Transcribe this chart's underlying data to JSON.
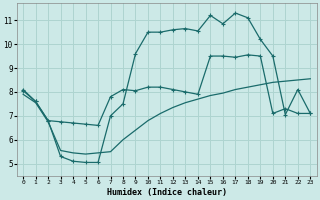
{
  "xlabel": "Humidex (Indice chaleur)",
  "background_color": "#cce9e7",
  "grid_color": "#aed4d0",
  "line_color": "#1a6b6b",
  "xlim": [
    -0.5,
    23.5
  ],
  "ylim": [
    4.5,
    11.7
  ],
  "xticks": [
    0,
    1,
    2,
    3,
    4,
    5,
    6,
    7,
    8,
    9,
    10,
    11,
    12,
    13,
    14,
    15,
    16,
    17,
    18,
    19,
    20,
    21,
    22,
    23
  ],
  "yticks": [
    5,
    6,
    7,
    8,
    9,
    10,
    11
  ],
  "line1_x": [
    0,
    1,
    2,
    3,
    4,
    5,
    6,
    7,
    8,
    9,
    10,
    11,
    12,
    13,
    14,
    15,
    16,
    17,
    18,
    19,
    20,
    21,
    22,
    23
  ],
  "line1_y": [
    8.1,
    7.6,
    6.8,
    5.3,
    5.1,
    5.05,
    5.05,
    7.0,
    7.5,
    9.6,
    10.5,
    10.5,
    10.6,
    10.65,
    10.55,
    11.2,
    10.85,
    11.3,
    11.1,
    10.2,
    9.5,
    7.05,
    8.1,
    7.1
  ],
  "line2_x": [
    0,
    1,
    2,
    3,
    4,
    5,
    6,
    7,
    8,
    9,
    10,
    11,
    12,
    13,
    14,
    15,
    16,
    17,
    18,
    19,
    20,
    21,
    22,
    23
  ],
  "line2_y": [
    7.9,
    7.55,
    6.75,
    5.55,
    5.45,
    5.4,
    5.45,
    5.5,
    6.0,
    6.4,
    6.8,
    7.1,
    7.35,
    7.55,
    7.7,
    7.85,
    7.95,
    8.1,
    8.2,
    8.3,
    8.4,
    8.45,
    8.5,
    8.55
  ],
  "line3_x": [
    0,
    1,
    2,
    3,
    4,
    5,
    6,
    7,
    8,
    9,
    10,
    11,
    12,
    13,
    14,
    15,
    16,
    17,
    18,
    19,
    20,
    21,
    22,
    23
  ],
  "line3_y": [
    8.05,
    7.6,
    6.8,
    6.75,
    6.7,
    6.65,
    6.6,
    7.8,
    8.1,
    8.05,
    8.2,
    8.2,
    8.1,
    8.0,
    7.9,
    9.5,
    9.5,
    9.45,
    9.55,
    9.5,
    7.1,
    7.3,
    7.1,
    7.1
  ]
}
